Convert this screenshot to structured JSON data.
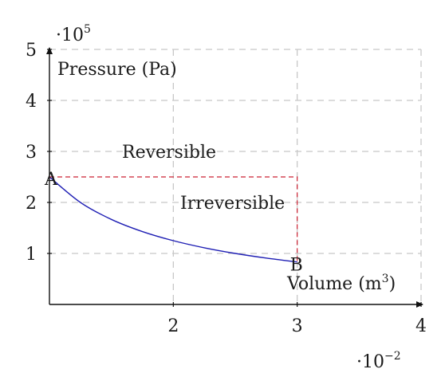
{
  "chart_data": {
    "type": "line",
    "xlabel": "Volume (m",
    "xlabel_sup": "3",
    "xlabel_close": ")",
    "ylabel": "Pressure (Pa)",
    "x_multiplier": {
      "base": "·10",
      "exp": "−2"
    },
    "y_multiplier": {
      "base": "·10",
      "exp": "5"
    },
    "xlim": [
      1.0,
      4.0
    ],
    "ylim": [
      0,
      5
    ],
    "x_ticks": [
      {
        "value": 2,
        "label": "2"
      },
      {
        "value": 3,
        "label": "3"
      },
      {
        "value": 4,
        "label": "4"
      }
    ],
    "y_ticks": [
      {
        "value": 1,
        "label": "1"
      },
      {
        "value": 2,
        "label": "2"
      },
      {
        "value": 3,
        "label": "3"
      },
      {
        "value": 4,
        "label": "4"
      },
      {
        "value": 5,
        "label": "5"
      }
    ],
    "grid": true,
    "grid_style": "dashed",
    "series": [
      {
        "label": "Reversible",
        "style": "solid",
        "color": "#1f1fb4",
        "x": [
          1.0,
          1.25,
          1.5,
          1.75,
          2.0,
          2.25,
          2.5,
          2.75,
          3.0
        ],
        "y": [
          2.5,
          2.0,
          1.667,
          1.429,
          1.25,
          1.111,
          1.0,
          0.909,
          0.833
        ]
      },
      {
        "label": "Irreversible",
        "style": "dashed",
        "color": "#cc2233",
        "x": [
          1.0,
          3.0,
          3.0
        ],
        "y": [
          2.5,
          2.5,
          0.833
        ]
      }
    ],
    "annotations": [
      {
        "text": "A",
        "x": 1.0,
        "y": 2.5
      },
      {
        "text": "B",
        "x": 3.0,
        "y": 0.833
      }
    ]
  }
}
